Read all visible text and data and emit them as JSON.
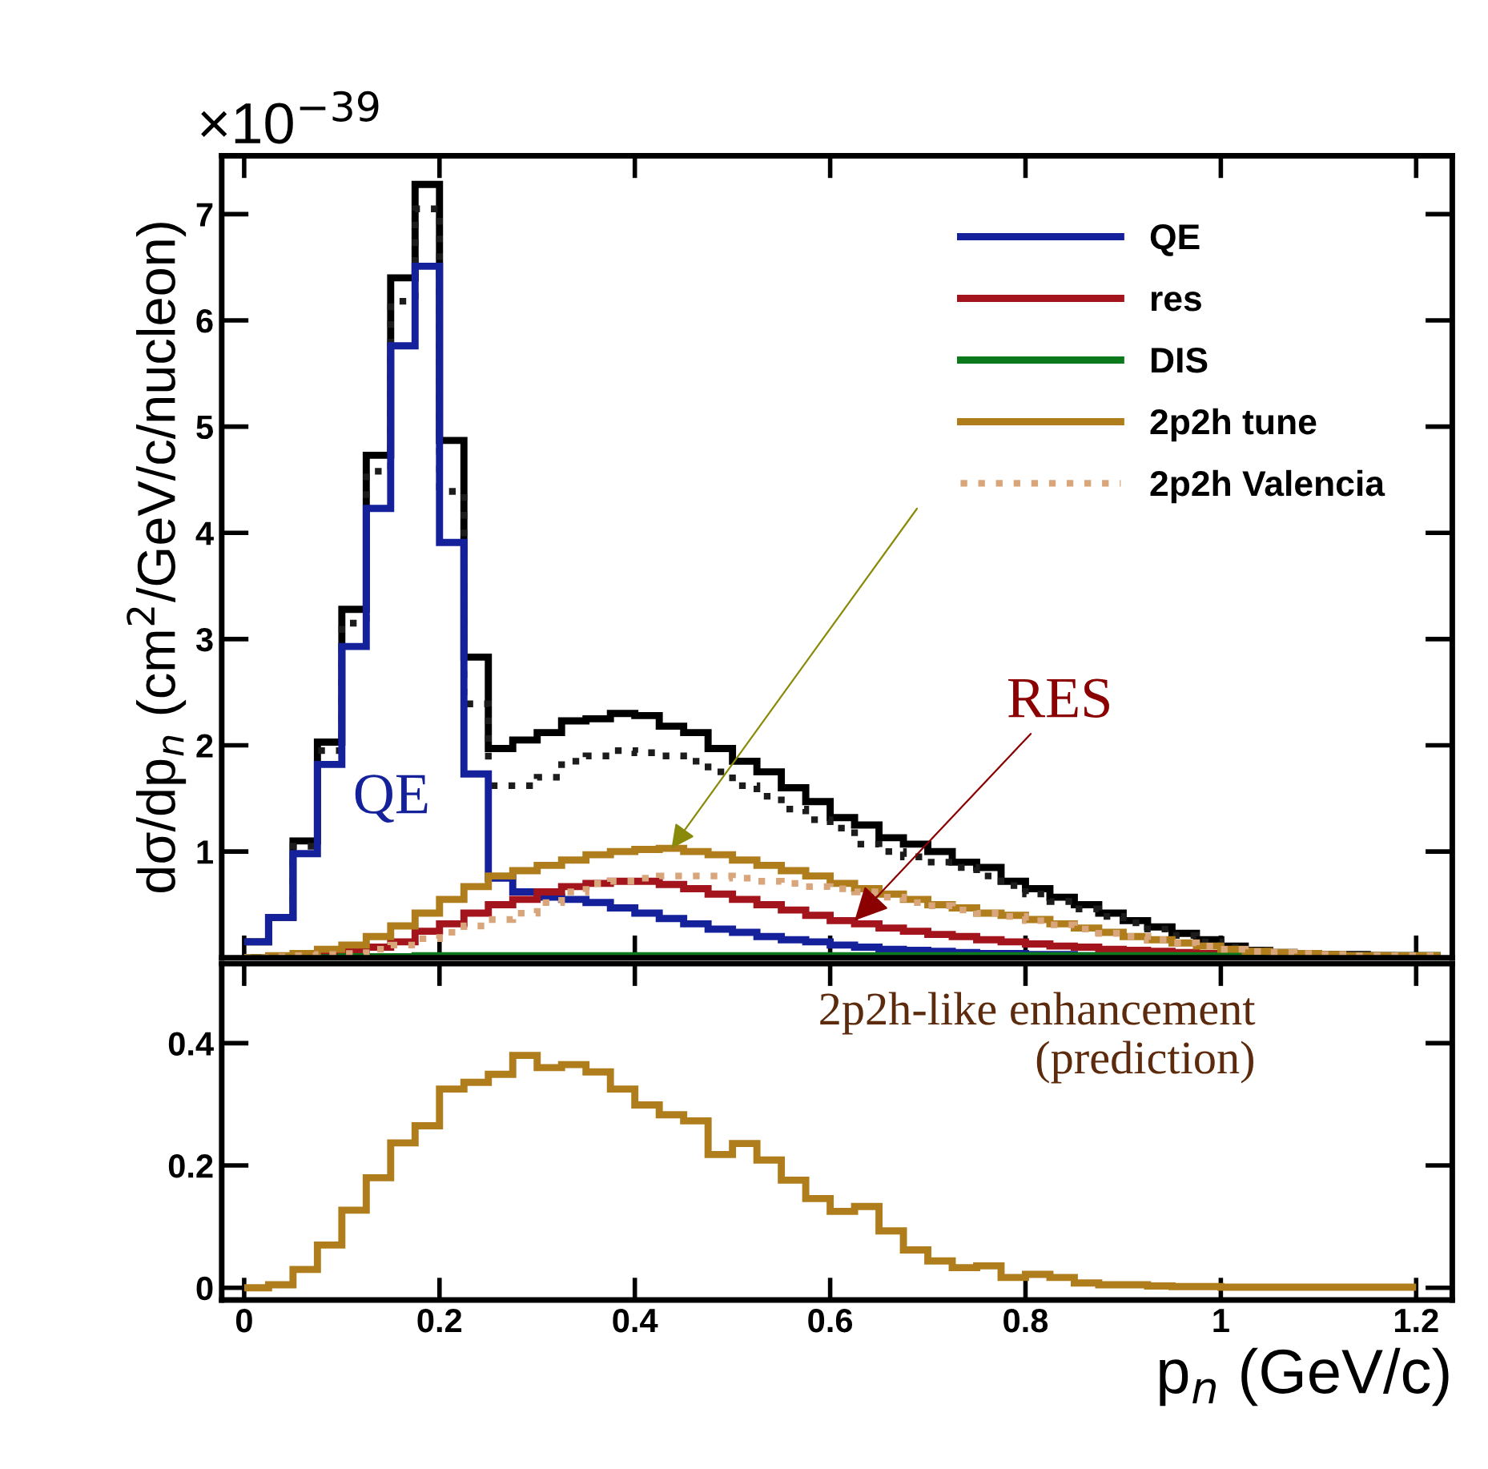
{
  "chart_data": [
    {
      "type": "histogram",
      "ylabel": "dσ/dp$_{n}$ (cm$^{2}$/GeV/c/nucleon)",
      "bins": [
        0,
        0.025,
        0.05,
        0.075,
        0.1,
        0.125,
        0.15,
        0.175,
        0.2,
        0.225,
        0.25,
        0.275,
        0.3,
        0.325,
        0.35,
        0.375,
        0.4,
        0.425,
        0.45,
        0.475,
        0.5,
        0.525,
        0.55,
        0.575,
        0.6,
        0.625,
        0.65,
        0.675,
        0.7,
        0.725,
        0.75,
        0.775,
        0.8,
        0.825,
        0.85,
        0.875,
        0.9,
        0.925,
        0.95,
        0.975,
        1.0,
        1.025,
        1.05,
        1.075,
        1.1,
        1.125,
        1.15,
        1.175,
        1.2,
        1.225
      ],
      "series": [
        {
          "color": "#000000",
          "line_style": "solid",
          "values": [
            0.15,
            0.38,
            1.1,
            2.03,
            3.28,
            4.73,
            6.4,
            7.28,
            4.87,
            2.83,
            1.97,
            2.05,
            2.12,
            2.23,
            2.25,
            2.3,
            2.28,
            2.18,
            2.12,
            1.97,
            1.85,
            1.75,
            1.6,
            1.47,
            1.32,
            1.25,
            1.13,
            1.07,
            1.0,
            0.9,
            0.85,
            0.72,
            0.65,
            0.57,
            0.5,
            0.42,
            0.35,
            0.29,
            0.23,
            0.17,
            0.11,
            0.07,
            0.05,
            0.04,
            0.03,
            0.03,
            0.02,
            0.02,
            0.02
          ]
        },
        {
          "color": "#1c1c1c",
          "line_style": "dotted",
          "values": [
            0.15,
            0.38,
            1.05,
            1.95,
            3.15,
            4.58,
            6.18,
            7.05,
            4.39,
            2.39,
            1.62,
            1.62,
            1.7,
            1.85,
            1.9,
            1.95,
            1.93,
            1.9,
            1.85,
            1.75,
            1.62,
            1.52,
            1.4,
            1.3,
            1.22,
            1.07,
            1.0,
            0.95,
            0.9,
            0.85,
            0.77,
            0.68,
            0.6,
            0.53,
            0.46,
            0.39,
            0.33,
            0.27,
            0.21,
            0.15,
            0.1,
            0.07,
            0.05,
            0.04,
            0.03,
            0.02,
            0.02,
            0.02,
            0.02
          ]
        },
        {
          "name": "QE",
          "color": "#14219a",
          "line_style": "solid",
          "values": [
            0.15,
            0.38,
            0.98,
            1.82,
            2.93,
            4.23,
            5.76,
            6.51,
            3.91,
            1.73,
            0.75,
            0.62,
            0.57,
            0.55,
            0.52,
            0.47,
            0.42,
            0.37,
            0.32,
            0.27,
            0.24,
            0.2,
            0.17,
            0.15,
            0.12,
            0.1,
            0.08,
            0.07,
            0.06,
            0.05,
            0.04,
            0.04,
            0.03,
            0.03,
            0.02,
            0.02,
            0.02,
            0.02,
            0.01,
            0.01,
            0.01,
            0.01,
            0.01,
            0.01,
            0.01,
            0.01,
            0.01,
            0.01,
            0.01
          ]
        },
        {
          "name": "res",
          "color": "#a3141c",
          "line_style": "solid",
          "values": [
            0,
            0,
            0.01,
            0.03,
            0.06,
            0.1,
            0.15,
            0.25,
            0.32,
            0.42,
            0.5,
            0.55,
            0.62,
            0.67,
            0.7,
            0.72,
            0.72,
            0.69,
            0.65,
            0.6,
            0.55,
            0.5,
            0.45,
            0.4,
            0.35,
            0.32,
            0.28,
            0.25,
            0.22,
            0.2,
            0.17,
            0.15,
            0.13,
            0.11,
            0.1,
            0.08,
            0.07,
            0.06,
            0.05,
            0.04,
            0.04,
            0.03,
            0.03,
            0.02,
            0.02,
            0.02,
            0.02,
            0.01,
            0.01
          ]
        },
        {
          "name": "DIS",
          "color": "#0c7a1c",
          "line_style": "solid",
          "values": [
            0,
            0,
            0,
            0,
            0.01,
            0.01,
            0.01,
            0.02,
            0.02,
            0.02,
            0.02,
            0.02,
            0.02,
            0.02,
            0.02,
            0.02,
            0.02,
            0.02,
            0.02,
            0.02,
            0.02,
            0.02,
            0.02,
            0.02,
            0.02,
            0.02,
            0.02,
            0.02,
            0.02,
            0.02,
            0.02,
            0.02,
            0.02,
            0.02,
            0.02,
            0.02,
            0.02,
            0.02,
            0.02,
            0.02,
            0.02,
            0.02,
            0.02,
            0.02,
            0.02,
            0.02,
            0.02,
            0.02,
            0.02
          ]
        },
        {
          "name": "2p2h tune",
          "color": "#b07d1c",
          "line_style": "solid",
          "values": [
            0,
            0.02,
            0.04,
            0.08,
            0.12,
            0.2,
            0.3,
            0.42,
            0.55,
            0.67,
            0.77,
            0.82,
            0.87,
            0.92,
            0.97,
            1.0,
            1.02,
            1.03,
            1.0,
            0.97,
            0.92,
            0.87,
            0.82,
            0.77,
            0.7,
            0.65,
            0.6,
            0.55,
            0.5,
            0.47,
            0.42,
            0.4,
            0.36,
            0.32,
            0.28,
            0.24,
            0.2,
            0.17,
            0.14,
            0.11,
            0.08,
            0.06,
            0.05,
            0.04,
            0.03,
            0.02,
            0.02,
            0.02,
            0.02
          ]
        },
        {
          "name": "2p2h Valencia",
          "color": "#d9a67c",
          "line_style": "dotted",
          "values": [
            0,
            0.01,
            0.02,
            0.03,
            0.04,
            0.08,
            0.12,
            0.18,
            0.24,
            0.3,
            0.36,
            0.42,
            0.52,
            0.62,
            0.7,
            0.72,
            0.75,
            0.77,
            0.77,
            0.77,
            0.75,
            0.72,
            0.7,
            0.67,
            0.65,
            0.62,
            0.57,
            0.52,
            0.49,
            0.45,
            0.42,
            0.39,
            0.35,
            0.31,
            0.27,
            0.23,
            0.2,
            0.17,
            0.14,
            0.11,
            0.08,
            0.06,
            0.05,
            0.04,
            0.03,
            0.02,
            0.02,
            0.02,
            0.02
          ]
        }
      ],
      "xlim": [
        -0.023,
        1.237
      ],
      "ylim": [
        0,
        7.55
      ],
      "yticks": [
        1,
        2,
        3,
        4,
        5,
        6,
        7
      ],
      "tick_labels": "y",
      "legend": "top right",
      "annotations": [
        "×10$^{−39}$",
        "QE",
        {
          "text": "RES",
          "x": 0.625,
          "y": 0.35
        }
      ]
    },
    {
      "type": "histogram",
      "xlabel": "p$_{n}$ (GeV/c)",
      "bins": [
        0,
        0.025,
        0.05,
        0.075,
        0.1,
        0.125,
        0.15,
        0.175,
        0.2,
        0.225,
        0.25,
        0.275,
        0.3,
        0.325,
        0.35,
        0.375,
        0.4,
        0.425,
        0.45,
        0.475,
        0.5,
        0.525,
        0.55,
        0.575,
        0.6,
        0.625,
        0.65,
        0.675,
        0.7,
        0.725,
        0.75,
        0.775,
        0.8,
        0.825,
        0.85,
        0.875,
        0.9,
        0.925,
        0.95,
        0.975,
        1.0,
        1.025,
        1.05,
        1.075,
        1.1,
        1.125,
        1.15,
        1.175,
        1.2
      ],
      "values": [
        0,
        0.005,
        0.03,
        0.07,
        0.127,
        0.18,
        0.237,
        0.265,
        0.325,
        0.336,
        0.349,
        0.38,
        0.36,
        0.365,
        0.353,
        0.325,
        0.299,
        0.283,
        0.273,
        0.218,
        0.236,
        0.209,
        0.176,
        0.146,
        0.125,
        0.133,
        0.093,
        0.062,
        0.044,
        0.033,
        0.036,
        0.017,
        0.022,
        0.017,
        0.008,
        0.005,
        0.005,
        0.003,
        0.002,
        0.002,
        0.001,
        0.001,
        0.001,
        0.001,
        0.001,
        0.001,
        0.001,
        0.001
      ],
      "color": "#b07d1c",
      "xlim": [
        -0.023,
        1.237
      ],
      "ylim": [
        -0.02,
        0.53
      ],
      "xticks": [
        0,
        0.2,
        0.4,
        0.6,
        0.8,
        1,
        1.2
      ],
      "yticks": [
        0,
        0.2,
        0.4
      ],
      "annotations": [
        "2p2h-like enhancement\n(prediction)"
      ]
    }
  ]
}
